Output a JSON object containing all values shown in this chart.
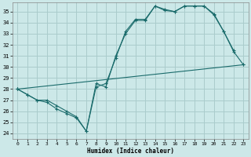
{
  "title": "",
  "xlabel": "Humidex (Indice chaleur)",
  "ylabel": "",
  "bg_color": "#cce8e8",
  "grid_color": "#aacccc",
  "line_color": "#1a6b6b",
  "xlim": [
    -0.5,
    23.5
  ],
  "ylim": [
    23.5,
    35.8
  ],
  "xticks": [
    0,
    1,
    2,
    3,
    4,
    5,
    6,
    7,
    8,
    9,
    10,
    11,
    12,
    13,
    14,
    15,
    16,
    17,
    18,
    19,
    20,
    21,
    22,
    23
  ],
  "yticks": [
    24,
    25,
    26,
    27,
    28,
    29,
    30,
    31,
    32,
    33,
    34,
    35
  ],
  "line1_x": [
    0,
    1,
    2,
    3,
    4,
    5,
    6,
    7,
    8,
    9,
    10,
    11,
    12,
    13,
    14,
    15,
    16,
    17,
    18,
    19,
    20,
    21,
    22
  ],
  "line1_y": [
    28.0,
    27.5,
    27.0,
    27.0,
    26.5,
    26.0,
    25.5,
    24.2,
    28.5,
    28.2,
    31.0,
    33.0,
    34.2,
    34.2,
    35.5,
    35.2,
    35.0,
    35.5,
    35.5,
    35.5,
    34.8,
    33.2,
    31.5
  ],
  "line2_x": [
    0,
    1,
    2,
    3,
    4,
    5,
    6,
    7,
    8,
    9,
    10,
    11,
    12,
    13,
    14,
    15,
    16,
    17,
    18,
    19,
    20,
    21,
    22,
    23
  ],
  "line2_y": [
    28.0,
    27.5,
    27.0,
    26.8,
    26.2,
    25.8,
    25.4,
    24.2,
    28.2,
    28.5,
    30.8,
    33.2,
    34.3,
    34.3,
    35.5,
    35.1,
    35.0,
    35.5,
    35.5,
    35.5,
    34.7,
    33.2,
    31.4,
    30.2
  ],
  "line3_x": [
    0,
    23
  ],
  "line3_y": [
    28.0,
    30.2
  ]
}
